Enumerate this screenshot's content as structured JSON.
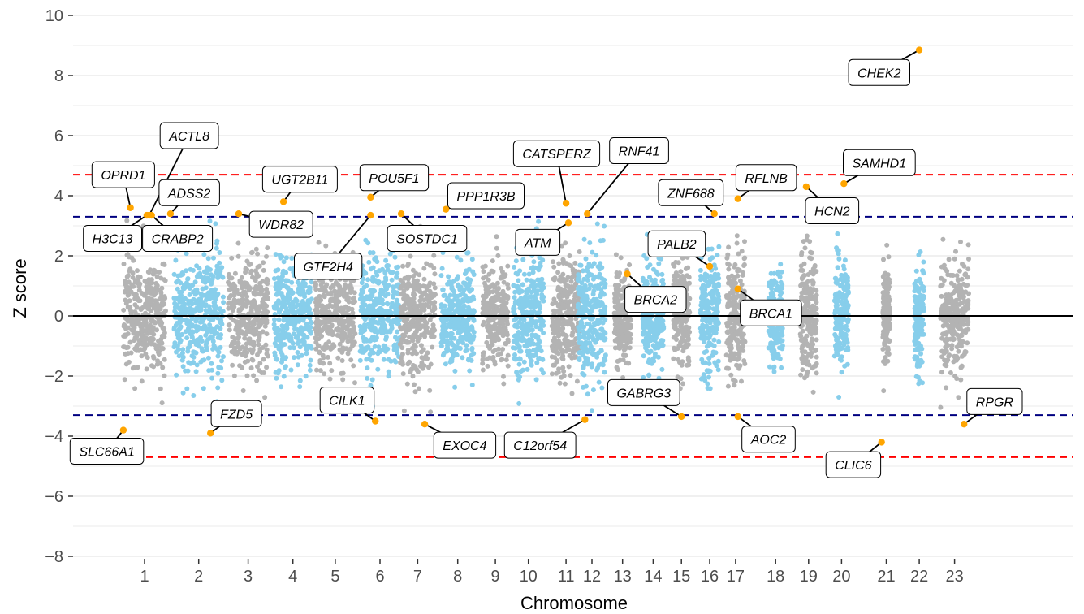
{
  "chart_data": {
    "type": "scatter",
    "title": "",
    "xlabel": "Chromosome",
    "ylabel": "Z score",
    "ylim": [
      -8,
      10
    ],
    "yticks": [
      -8,
      -6,
      -4,
      -2,
      0,
      2,
      4,
      6,
      8,
      10
    ],
    "ytick_labels": [
      "−8",
      "−6",
      "−4",
      "−2",
      "0",
      "2",
      "4",
      "6",
      "8",
      "10"
    ],
    "grid": true,
    "legend": "none",
    "colors": {
      "grey": "#b3b3b3",
      "blue": "#87ceeb",
      "highlight": "#ffa500",
      "red_line": "#ff0000",
      "navy_line": "#000080"
    },
    "thresholds": [
      {
        "y": 4.7,
        "color": "#ff0000",
        "style": "dashed"
      },
      {
        "y": -4.7,
        "color": "#ff0000",
        "style": "dashed"
      },
      {
        "y": 3.3,
        "color": "#000080",
        "style": "dashed"
      },
      {
        "y": -3.3,
        "color": "#000080",
        "style": "dashed"
      },
      {
        "y": 0,
        "color": "#000000",
        "style": "solid"
      }
    ],
    "chromosomes": [
      {
        "label": "1",
        "center": 1.0,
        "width": 0.9,
        "color": "grey",
        "spread": 1.0
      },
      {
        "label": "2",
        "center": 2.15,
        "width": 1.05,
        "color": "blue",
        "spread": 1.0
      },
      {
        "label": "3",
        "center": 3.2,
        "width": 0.85,
        "color": "grey",
        "spread": 0.95
      },
      {
        "label": "4",
        "center": 4.15,
        "width": 0.8,
        "color": "blue",
        "spread": 0.9
      },
      {
        "label": "5",
        "center": 5.05,
        "width": 0.85,
        "color": "grey",
        "spread": 0.9
      },
      {
        "label": "6",
        "center": 6.0,
        "width": 0.85,
        "color": "blue",
        "spread": 1.0
      },
      {
        "label": "7",
        "center": 6.8,
        "width": 0.75,
        "color": "grey",
        "spread": 0.95
      },
      {
        "label": "8",
        "center": 7.65,
        "width": 0.7,
        "color": "blue",
        "spread": 0.85
      },
      {
        "label": "9",
        "center": 8.45,
        "width": 0.55,
        "color": "grey",
        "spread": 0.8
      },
      {
        "label": "10",
        "center": 9.15,
        "width": 0.65,
        "color": "blue",
        "spread": 0.95
      },
      {
        "label": "11",
        "center": 9.95,
        "width": 0.6,
        "color": "grey",
        "spread": 1.0
      },
      {
        "label": "12",
        "center": 10.5,
        "width": 0.6,
        "color": "blue",
        "spread": 1.1
      },
      {
        "label": "13",
        "center": 11.15,
        "width": 0.35,
        "color": "grey",
        "spread": 0.75
      },
      {
        "label": "14",
        "center": 11.8,
        "width": 0.45,
        "color": "blue",
        "spread": 0.85
      },
      {
        "label": "15",
        "center": 12.4,
        "width": 0.35,
        "color": "grey",
        "spread": 0.9
      },
      {
        "label": "16",
        "center": 13.0,
        "width": 0.4,
        "color": "blue",
        "spread": 1.0
      },
      {
        "label": "17",
        "center": 13.55,
        "width": 0.4,
        "color": "grey",
        "spread": 1.0
      },
      {
        "label": "18",
        "center": 14.4,
        "width": 0.3,
        "color": "blue",
        "spread": 0.8
      },
      {
        "label": "19",
        "center": 15.1,
        "width": 0.35,
        "color": "grey",
        "spread": 1.05
      },
      {
        "label": "20",
        "center": 15.8,
        "width": 0.3,
        "color": "blue",
        "spread": 0.9
      },
      {
        "label": "21",
        "center": 16.75,
        "width": 0.15,
        "color": "grey",
        "spread": 0.75
      },
      {
        "label": "22",
        "center": 17.45,
        "width": 0.2,
        "color": "blue",
        "spread": 0.85
      },
      {
        "label": "23",
        "center": 18.2,
        "width": 0.6,
        "color": "grey",
        "spread": 0.9
      }
    ],
    "highlighted_genes": [
      {
        "gene": "OPRD1",
        "x": 0.7,
        "y": 3.6,
        "lx": 0.55,
        "ly": 4.7
      },
      {
        "gene": "ACTL8",
        "x": 1.1,
        "y": 3.35,
        "lx": 1.95,
        "ly": 6.0
      },
      {
        "gene": "H3C13",
        "x": 1.05,
        "y": 3.35,
        "lx": 0.32,
        "ly": 2.58
      },
      {
        "gene": "CRABP2",
        "x": 1.15,
        "y": 3.35,
        "lx": 1.7,
        "ly": 2.58
      },
      {
        "gene": "ADSS2",
        "x": 1.55,
        "y": 3.4,
        "lx": 1.95,
        "ly": 4.1
      },
      {
        "gene": "UGT2B11",
        "x": 3.95,
        "y": 3.8,
        "lx": 4.3,
        "ly": 4.55
      },
      {
        "gene": "WDR82",
        "x": 3.0,
        "y": 3.4,
        "lx": 3.9,
        "ly": 3.05
      },
      {
        "gene": "POU5F1",
        "x": 5.8,
        "y": 3.95,
        "lx": 6.3,
        "ly": 4.6
      },
      {
        "gene": "GTF2H4",
        "x": 5.8,
        "y": 3.35,
        "lx": 4.9,
        "ly": 1.65
      },
      {
        "gene": "SOSTDC1",
        "x": 6.45,
        "y": 3.4,
        "lx": 7.0,
        "ly": 2.58
      },
      {
        "gene": "PPP1R3B",
        "x": 7.4,
        "y": 3.55,
        "lx": 8.25,
        "ly": 4.0
      },
      {
        "gene": "CATSPERZ",
        "x": 9.95,
        "y": 3.75,
        "lx": 9.75,
        "ly": 5.4
      },
      {
        "gene": "ATM",
        "x": 10.0,
        "y": 3.1,
        "lx": 9.35,
        "ly": 2.45
      },
      {
        "gene": "RNF41",
        "x": 10.4,
        "y": 3.4,
        "lx": 11.5,
        "ly": 5.5
      },
      {
        "gene": "ZNF688",
        "x": 13.1,
        "y": 3.4,
        "lx": 12.6,
        "ly": 4.1
      },
      {
        "gene": "RFLNB",
        "x": 13.6,
        "y": 3.9,
        "lx": 14.2,
        "ly": 4.6
      },
      {
        "gene": "HCN2",
        "x": 15.05,
        "y": 4.3,
        "lx": 15.6,
        "ly": 3.5
      },
      {
        "gene": "SAMHD1",
        "x": 15.85,
        "y": 4.4,
        "lx": 16.6,
        "ly": 5.1
      },
      {
        "gene": "CHEK2",
        "x": 17.45,
        "y": 8.85,
        "lx": 16.6,
        "ly": 8.1
      },
      {
        "gene": "PALB2",
        "x": 13.0,
        "y": 1.65,
        "lx": 12.3,
        "ly": 2.4
      },
      {
        "gene": "BRCA2",
        "x": 11.25,
        "y": 1.4,
        "lx": 11.85,
        "ly": 0.55
      },
      {
        "gene": "BRCA1",
        "x": 13.6,
        "y": 0.9,
        "lx": 14.3,
        "ly": 0.1
      },
      {
        "gene": "SLC66A1",
        "x": 0.55,
        "y": -3.8,
        "lx": 0.2,
        "ly": -4.5
      },
      {
        "gene": "FZD5",
        "x": 2.4,
        "y": -3.9,
        "lx": 2.95,
        "ly": -3.25
      },
      {
        "gene": "CILK1",
        "x": 5.9,
        "y": -3.5,
        "lx": 5.3,
        "ly": -2.8
      },
      {
        "gene": "EXOC4",
        "x": 6.95,
        "y": -3.6,
        "lx": 7.8,
        "ly": -4.3
      },
      {
        "gene": "C12orf54",
        "x": 10.35,
        "y": -3.45,
        "lx": 9.4,
        "ly": -4.3
      },
      {
        "gene": "GABRG3",
        "x": 12.4,
        "y": -3.35,
        "lx": 11.6,
        "ly": -2.55
      },
      {
        "gene": "AOC2",
        "x": 13.6,
        "y": -3.35,
        "lx": 14.25,
        "ly": -4.1
      },
      {
        "gene": "CLIC6",
        "x": 16.65,
        "y": -4.2,
        "lx": 16.05,
        "ly": -4.95
      },
      {
        "gene": "RPGR",
        "x": 18.4,
        "y": -3.6,
        "lx": 19.05,
        "ly": -2.85
      }
    ]
  }
}
